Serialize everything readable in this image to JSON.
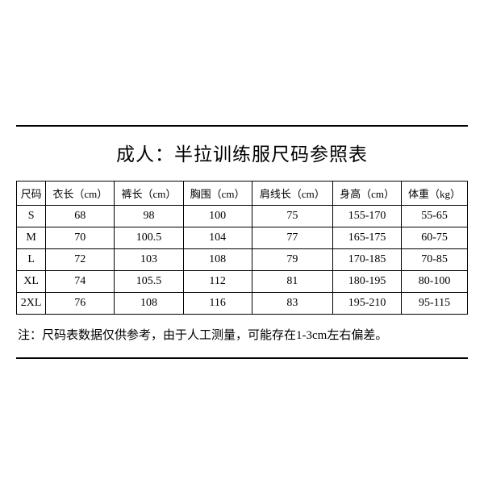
{
  "title": "成人：半拉训练服尺码参照表",
  "table": {
    "type": "table",
    "columns": [
      "尺码",
      "衣长（cm）",
      "裤长（cm）",
      "胸围（cm）",
      "肩线长（cm）",
      "身高（cm）",
      "体重（kg）"
    ],
    "rows": [
      [
        "S",
        "68",
        "98",
        "100",
        "75",
        "155-170",
        "55-65"
      ],
      [
        "M",
        "70",
        "100.5",
        "104",
        "77",
        "165-175",
        "60-75"
      ],
      [
        "L",
        "72",
        "103",
        "108",
        "79",
        "170-185",
        "70-85"
      ],
      [
        "XL",
        "74",
        "105.5",
        "112",
        "81",
        "180-195",
        "80-100"
      ],
      [
        "2XL",
        "76",
        "108",
        "116",
        "83",
        "195-210",
        "95-115"
      ]
    ],
    "border_color": "#000000",
    "background_color": "#ffffff",
    "header_fontsize": 13,
    "cell_fontsize": 14
  },
  "note": "注：尺码表数据仅供参考，由于人工测量，可能存在1-3cm左右偏差。",
  "title_fontsize": 23,
  "note_fontsize": 15
}
